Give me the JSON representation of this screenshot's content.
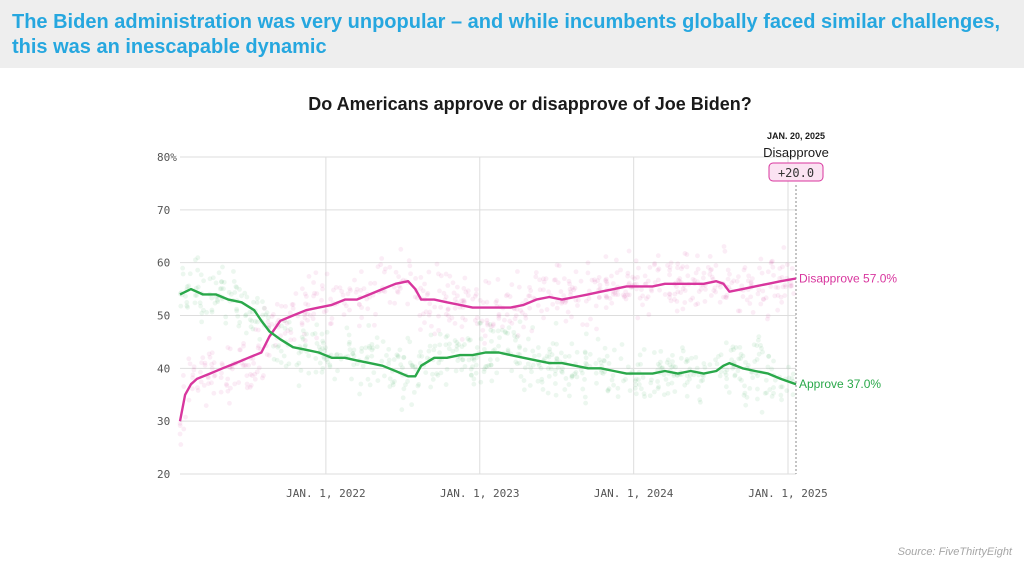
{
  "headline": "The Biden administration was very unpopular – and while incumbents globally faced similar challenges, this was an inescapable dynamic",
  "source": "Source: FiveThirtyEight",
  "colors": {
    "headline": "#26a7df",
    "approve": "#2aa84a",
    "disapprove": "#d8369e",
    "grid": "#dddddd",
    "header_bg": "#eeeeee"
  },
  "chart_data": {
    "type": "line",
    "title": "Do Americans approve or disapprove of Joe Biden?",
    "xlabel": "",
    "ylabel": "",
    "y_ticks": [
      "80%",
      "70",
      "60",
      "50",
      "40",
      "30",
      "20"
    ],
    "y_tick_values": [
      80,
      70,
      60,
      50,
      40,
      30,
      20
    ],
    "ylim": [
      20,
      80
    ],
    "xlim": [
      "2021-01-20",
      "2025-01-20"
    ],
    "x_ticks": [
      "JAN. 1, 2022",
      "JAN. 1, 2023",
      "JAN. 1, 2024",
      "JAN. 1, 2025"
    ],
    "x_tick_dates": [
      "2022-01-01",
      "2023-01-01",
      "2024-01-01",
      "2025-01-01"
    ],
    "grid": true,
    "legend": "end-of-line labels",
    "callout": {
      "date_label": "JAN. 20, 2025",
      "label": "Disapprove",
      "value": "+20.0",
      "date": "2025-01-20"
    },
    "series": [
      {
        "name": "Disapprove",
        "end_label": "Disapprove 57.0%",
        "color": "#d8369e",
        "x": [
          "2021-01-20",
          "2021-02-01",
          "2021-02-15",
          "2021-03-01",
          "2021-04-01",
          "2021-05-01",
          "2021-06-01",
          "2021-07-01",
          "2021-08-01",
          "2021-08-20",
          "2021-09-15",
          "2021-10-15",
          "2021-11-15",
          "2021-12-15",
          "2022-01-15",
          "2022-02-15",
          "2022-03-15",
          "2022-04-15",
          "2022-05-15",
          "2022-06-15",
          "2022-07-15",
          "2022-08-01",
          "2022-08-15",
          "2022-09-15",
          "2022-10-15",
          "2022-11-15",
          "2022-12-15",
          "2023-01-15",
          "2023-02-15",
          "2023-03-15",
          "2023-04-15",
          "2023-05-15",
          "2023-06-15",
          "2023-07-15",
          "2023-08-15",
          "2023-09-15",
          "2023-10-15",
          "2023-11-15",
          "2023-12-15",
          "2024-01-15",
          "2024-02-15",
          "2024-03-15",
          "2024-04-15",
          "2024-05-15",
          "2024-06-15",
          "2024-07-15",
          "2024-08-01",
          "2024-08-15",
          "2024-09-15",
          "2024-10-15",
          "2024-11-15",
          "2024-12-15",
          "2025-01-20"
        ],
        "values": [
          30,
          35,
          37,
          38,
          39,
          40,
          41,
          42,
          43,
          46,
          49,
          50,
          51,
          51.5,
          52,
          53,
          53,
          54,
          55,
          56,
          56.5,
          55,
          53,
          53,
          52.5,
          52,
          51.5,
          51.5,
          51.5,
          51.5,
          52,
          53,
          53.5,
          53,
          53.5,
          54,
          54.5,
          55,
          55.5,
          55.5,
          55.5,
          56,
          56,
          56,
          56,
          56.5,
          56,
          54.5,
          55,
          55.5,
          56,
          56.5,
          57
        ]
      },
      {
        "name": "Approve",
        "end_label": "Approve 37.0%",
        "color": "#2aa84a",
        "x": [
          "2021-01-20",
          "2021-02-15",
          "2021-03-15",
          "2021-04-15",
          "2021-05-15",
          "2021-06-15",
          "2021-07-15",
          "2021-08-01",
          "2021-08-20",
          "2021-09-15",
          "2021-10-15",
          "2021-11-15",
          "2021-12-15",
          "2022-01-15",
          "2022-02-15",
          "2022-03-15",
          "2022-04-15",
          "2022-05-15",
          "2022-06-15",
          "2022-07-15",
          "2022-08-01",
          "2022-08-15",
          "2022-09-15",
          "2022-10-15",
          "2022-11-15",
          "2022-12-15",
          "2023-01-15",
          "2023-02-15",
          "2023-03-15",
          "2023-04-15",
          "2023-05-15",
          "2023-06-15",
          "2023-07-15",
          "2023-08-15",
          "2023-09-15",
          "2023-10-15",
          "2023-11-15",
          "2023-12-15",
          "2024-01-15",
          "2024-02-15",
          "2024-03-15",
          "2024-04-15",
          "2024-05-15",
          "2024-06-15",
          "2024-07-15",
          "2024-08-01",
          "2024-08-15",
          "2024-09-15",
          "2024-10-15",
          "2024-11-15",
          "2024-12-15",
          "2025-01-20"
        ],
        "values": [
          54,
          55,
          54,
          54,
          53,
          52.5,
          51,
          49,
          47,
          45.5,
          44,
          43.5,
          43,
          42,
          42,
          41.5,
          41,
          40.5,
          39.5,
          38.5,
          38.5,
          40.5,
          42,
          42,
          42.5,
          42.5,
          43,
          43,
          42.5,
          42,
          41.5,
          41,
          41,
          40.5,
          40,
          40,
          39.5,
          39,
          39,
          39,
          39.5,
          39,
          39.5,
          39,
          39.5,
          40.5,
          41,
          40,
          39.5,
          39,
          38,
          37
        ]
      }
    ]
  }
}
